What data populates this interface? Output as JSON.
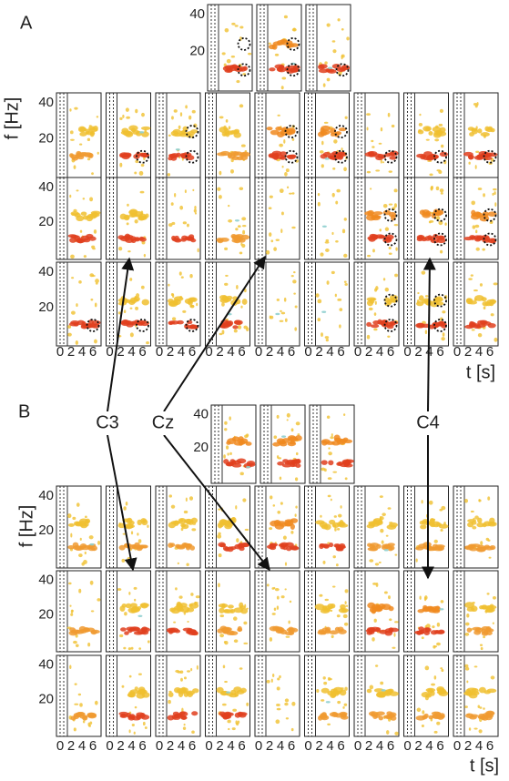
{
  "panel_a": {
    "label": "A",
    "y_axis_label": "f [Hz]",
    "x_axis_label": "t [s]",
    "y_ticks": [
      "40",
      "20"
    ],
    "x_ticks": [
      "0",
      "2",
      "4",
      "6"
    ]
  },
  "panel_b": {
    "label": "B",
    "y_axis_label": "f [Hz]",
    "x_axis_label": "t [s]",
    "y_ticks": [
      "40",
      "20"
    ],
    "x_ticks": [
      "0",
      "2",
      "4",
      "6"
    ]
  },
  "electrodes": [
    "C3",
    "Cz",
    "C4"
  ]
}
